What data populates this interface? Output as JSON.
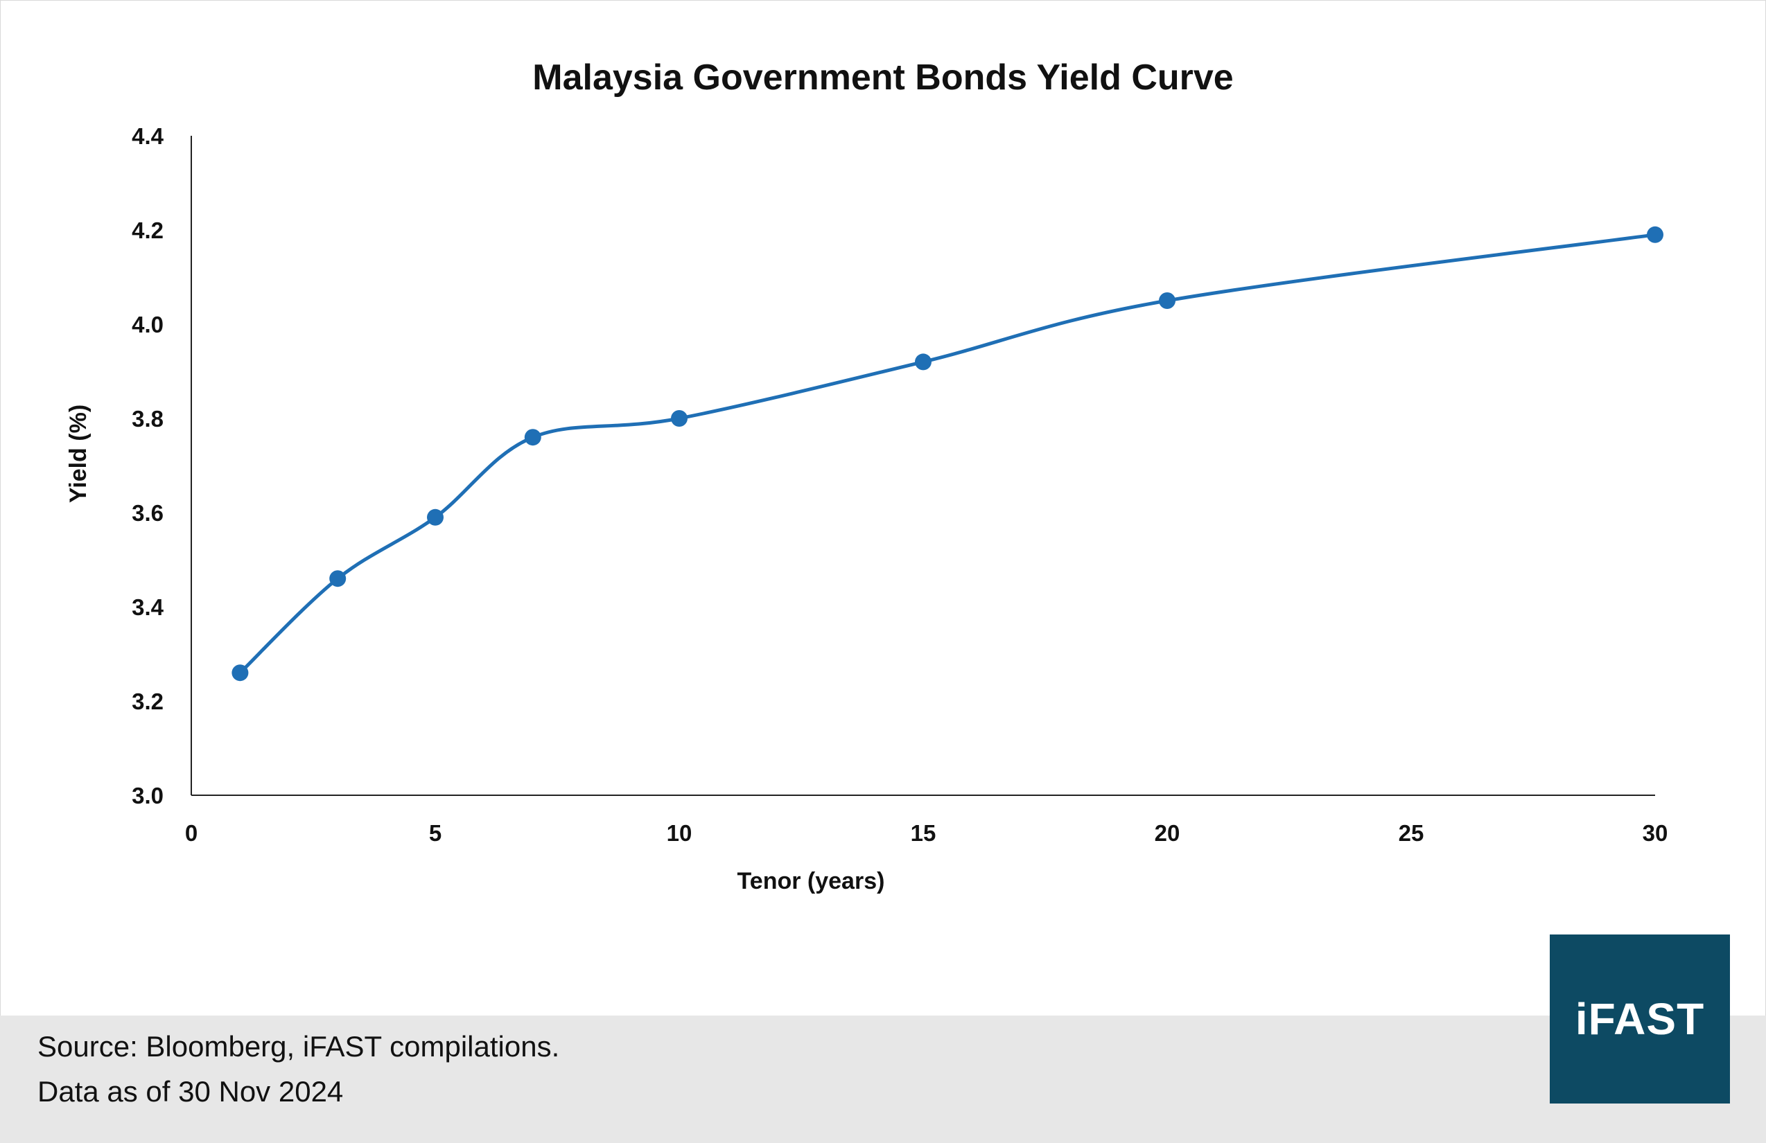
{
  "chart_data": {
    "type": "line",
    "title": "Malaysia Government Bonds Yield Curve",
    "xlabel": "Tenor (years)",
    "ylabel": "Yield (%)",
    "xlim": [
      0,
      30
    ],
    "ylim": [
      3.0,
      4.4
    ],
    "xticks": [
      "0",
      "5",
      "10",
      "15",
      "20",
      "25",
      "30"
    ],
    "yticks": [
      "3.0",
      "3.2",
      "3.4",
      "3.6",
      "3.8",
      "4.0",
      "4.2",
      "4.4"
    ],
    "grid": false,
    "smoothed": true,
    "series": [
      {
        "x": [
          1,
          3,
          5,
          7,
          10,
          15,
          20,
          30
        ],
        "values": [
          3.26,
          3.46,
          3.59,
          3.76,
          3.8,
          3.92,
          4.05,
          4.19
        ],
        "color": "#1f6fb5"
      }
    ]
  },
  "footer": {
    "source": "Source: Bloomberg, iFAST compilations.",
    "as_of": "Data as of 30 Nov 2024"
  },
  "logo": {
    "text": "iFAST",
    "color": "#0d4a63"
  }
}
